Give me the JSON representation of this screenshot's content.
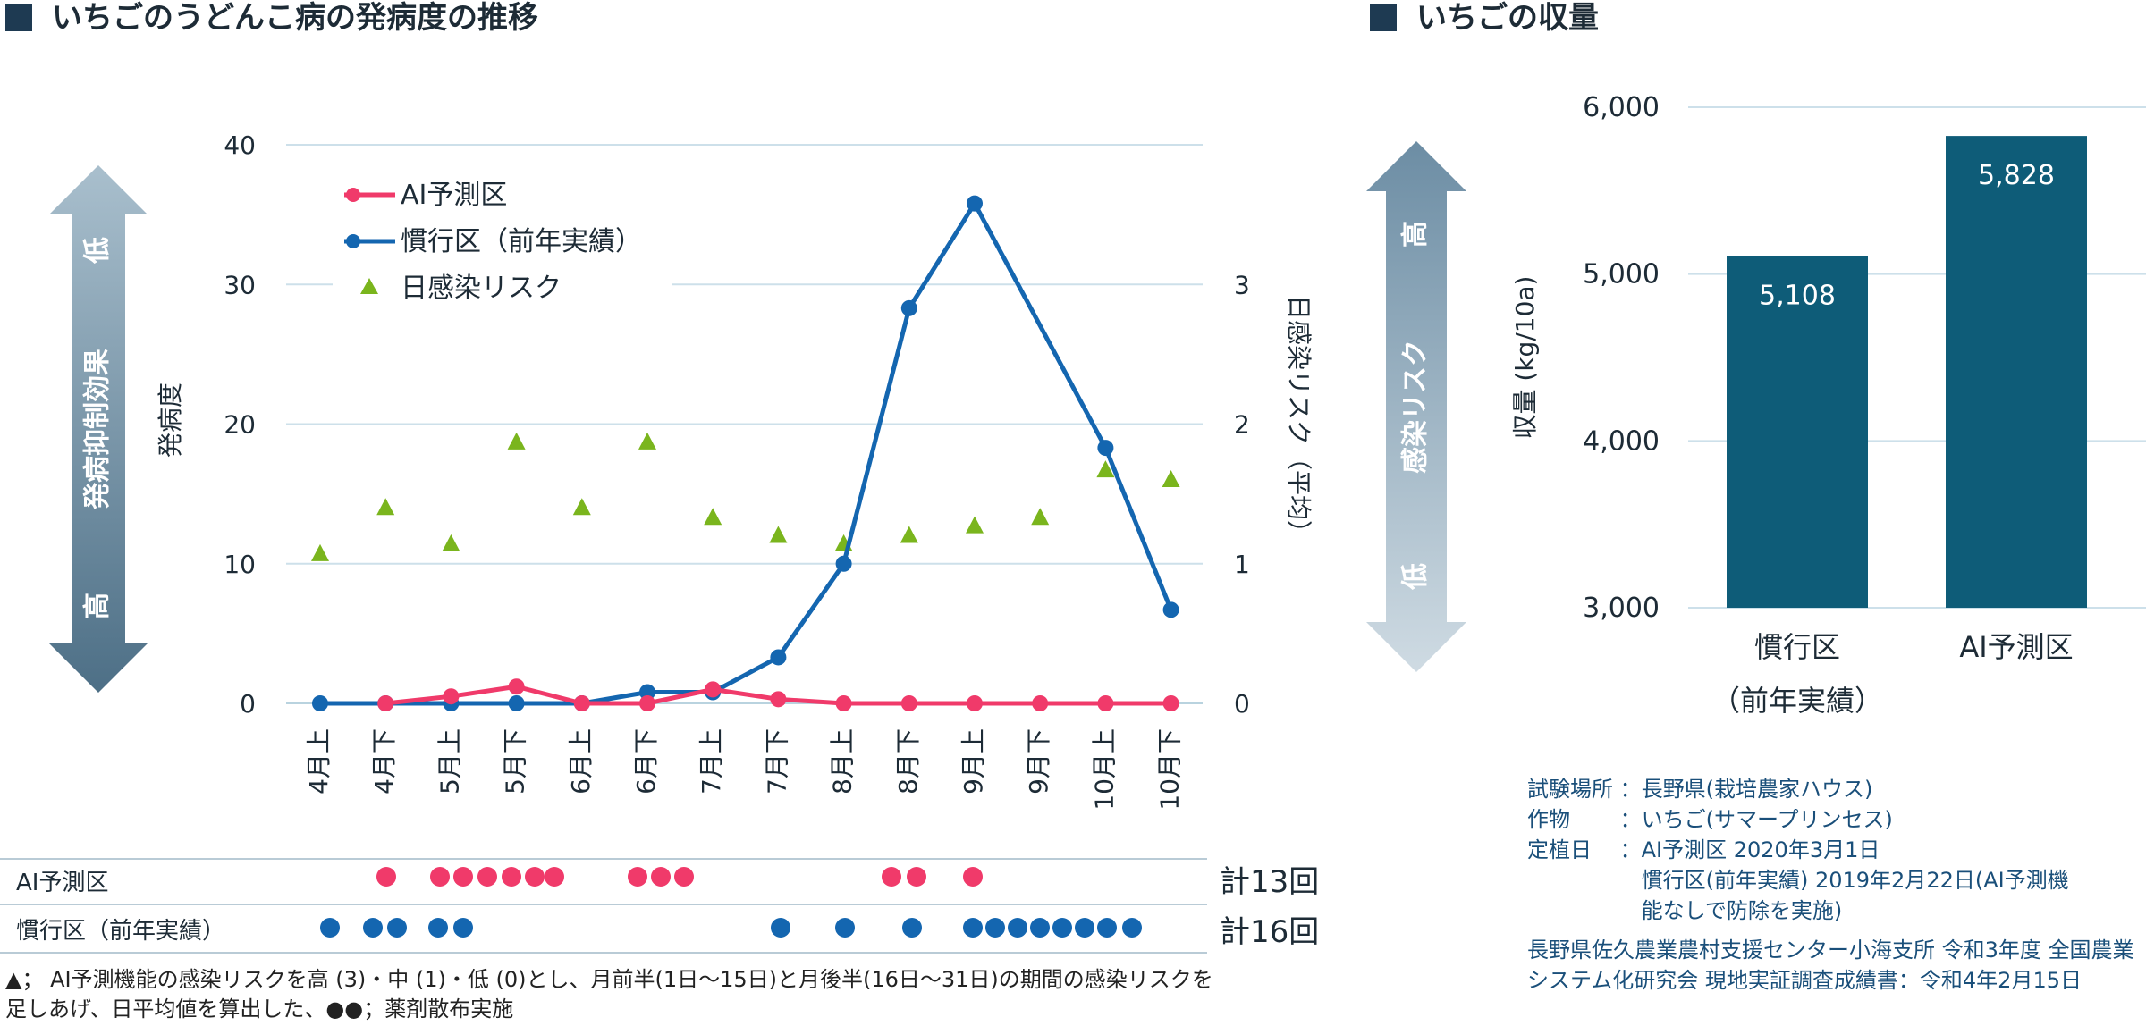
{
  "left": {
    "title": "いちごのうどんこ病の発病度の推移",
    "arrow_low": "低",
    "arrow_mid": "発病抑制効果",
    "arrow_high": "高"
  },
  "right": {
    "title": "いちごの収量",
    "arrow_high": "高",
    "arrow_mid": "感染リスク",
    "arrow_low": "低"
  },
  "colors": {
    "ai": "#f03a6a",
    "conv": "#1466b0",
    "risk": "#7ab51d",
    "bar": "#0e5c78",
    "arrow_left": "#5e7f95",
    "arrow_right": "#8ea8b8"
  },
  "chart_data": [
    {
      "type": "line",
      "ylabel": "発病度",
      "y2label": "日感染リスク（平均）",
      "ylim": [
        0,
        40
      ],
      "y2lim": [
        0,
        4
      ],
      "yticks": [
        "0",
        "10",
        "20",
        "30",
        "40"
      ],
      "y2ticks": [
        "0",
        "1",
        "2",
        "3"
      ],
      "categories": [
        "4月上",
        "4月下",
        "5月上",
        "5月下",
        "6月上",
        "6月下",
        "7月上",
        "7月下",
        "8月上",
        "8月下",
        "9月上",
        "9月下",
        "10月上",
        "10月下"
      ],
      "series": [
        {
          "name": "AI予測区",
          "values": [
            null,
            0,
            0.5,
            1.2,
            0,
            0,
            1.0,
            0.3,
            0,
            0,
            0,
            0,
            0,
            0
          ]
        },
        {
          "name": "慣行区（前年実績）",
          "values": [
            0,
            0,
            0,
            0,
            0,
            0.8,
            0.8,
            3.3,
            10.0,
            28.3,
            35.8,
            null,
            18.3,
            6.7
          ]
        },
        {
          "name": "日感染リスク",
          "axis": "y2",
          "values": [
            1.07,
            1.4,
            1.14,
            1.87,
            1.4,
            1.87,
            1.33,
            1.2,
            1.14,
            1.2,
            1.27,
            1.33,
            1.67,
            1.6
          ]
        }
      ],
      "spray": {
        "rows": [
          {
            "label": "AI予測区",
            "total": "計13回"
          },
          {
            "label": "慣行区（前年実績）",
            "total": "計16回"
          }
        ]
      },
      "footnote": "▲； AI予測機能の感染リスクを高 (3)・中 (1)・低 (0)とし、月前半(1日〜15日)と月後半(16日〜31日)の期間の感染リスクを足しあげ、日平均値を算出した、●●；薬剤散布実施"
    },
    {
      "type": "bar",
      "categories": [
        "慣行区",
        "AI予測区"
      ],
      "category_sub": [
        "（前年実績）",
        ""
      ],
      "values": [
        5108,
        5828
      ],
      "value_labels": [
        "5,108",
        "5,828"
      ],
      "ylabel": "収量 (kg/10a)",
      "ylim": [
        3000,
        6000
      ],
      "yticks": [
        "3,000",
        "4,000",
        "5,000",
        "6,000"
      ]
    }
  ],
  "info": {
    "lines": [
      "試験場所 ：長野県(栽培農家ハウス)",
      "作物 　　：いちご(サマープリンセス)",
      "定植日 　：AI予測区 2020年3月1日",
      "　　　　　 慣行区(前年実績) 2019年2月22日(AI予測機",
      "　　　　　 能なしで防除を実施)"
    ],
    "source": "長野県佐久農業農村支援センター小海支所 令和3年度 全国農業システム化研究会 現地実証調査成績書：令和4年2月15日"
  }
}
